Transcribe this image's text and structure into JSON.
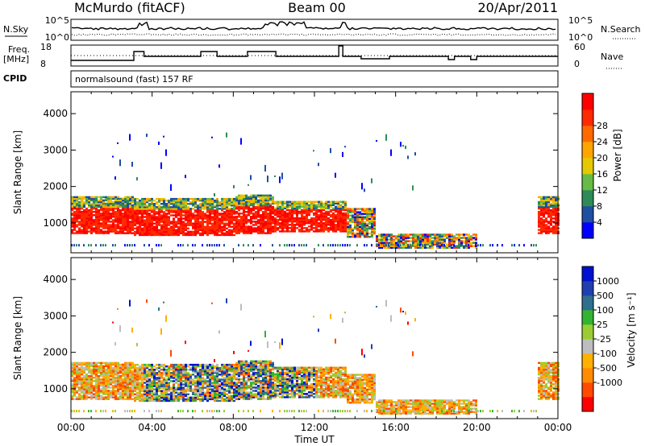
{
  "header": {
    "station": "McMurdo (fitACF)",
    "beam": "Beam 00",
    "date": "20/Apr/2011"
  },
  "top_panels": {
    "nsky_label": "N.Sky",
    "nsearch_label": "N.Search",
    "freq_label_1": "Freq.",
    "freq_label_2": "[MHz]",
    "nave_label": "Nave",
    "cpid_label": "CPID",
    "cpid_text": "normalsound (fast) 157 RF",
    "noise_ticks_left": [
      "10^5",
      "10^0"
    ],
    "noise_ticks_right": [
      "10^5",
      "10^0"
    ],
    "freq_ticks": [
      "18",
      "8"
    ],
    "nave_ticks": [
      "60",
      "0"
    ]
  },
  "colors": {
    "power_scale": [
      "#0000ff",
      "#1e4fa0",
      "#2e8b57",
      "#66bb44",
      "#e6c800",
      "#ffa500",
      "#ff6a00",
      "#ff2a00",
      "#ff0000"
    ],
    "velocity_scale": [
      "#ff0000",
      "#ff4a00",
      "#ff8c00",
      "#ffb000",
      "#bdbdbd",
      "#9acd32",
      "#32b432",
      "#2e6e8e",
      "#1f3fb0",
      "#0010d0"
    ]
  },
  "chart_data": [
    {
      "type": "heatmap",
      "title": "Power",
      "xlabel": "",
      "ylabel": "Slant Range [km]",
      "xlim": [
        "00:00",
        "24:00"
      ],
      "ylim": [
        180,
        4600
      ],
      "x_ticks": [
        "00:00",
        "04:00",
        "08:00",
        "12:00",
        "16:00",
        "20:00",
        "00:00"
      ],
      "y_ticks": [
        1000,
        2000,
        3000,
        4000
      ],
      "colorbar": {
        "label": "Power [dB]",
        "ticks": [
          4,
          8,
          12,
          16,
          20,
          24,
          28
        ]
      }
    },
    {
      "type": "heatmap",
      "title": "Velocity",
      "xlabel": "Time UT",
      "ylabel": "Slant Range [km]",
      "xlim": [
        "00:00",
        "24:00"
      ],
      "ylim": [
        180,
        4600
      ],
      "x_ticks": [
        "00:00",
        "04:00",
        "08:00",
        "12:00",
        "16:00",
        "20:00",
        "00:00"
      ],
      "y_ticks": [
        1000,
        2000,
        3000,
        4000
      ],
      "colorbar": {
        "label": "Velocity [m s⁻¹]",
        "ticks": [
          1000,
          500,
          100,
          25,
          -25,
          -100,
          -500,
          -1000
        ]
      }
    }
  ]
}
